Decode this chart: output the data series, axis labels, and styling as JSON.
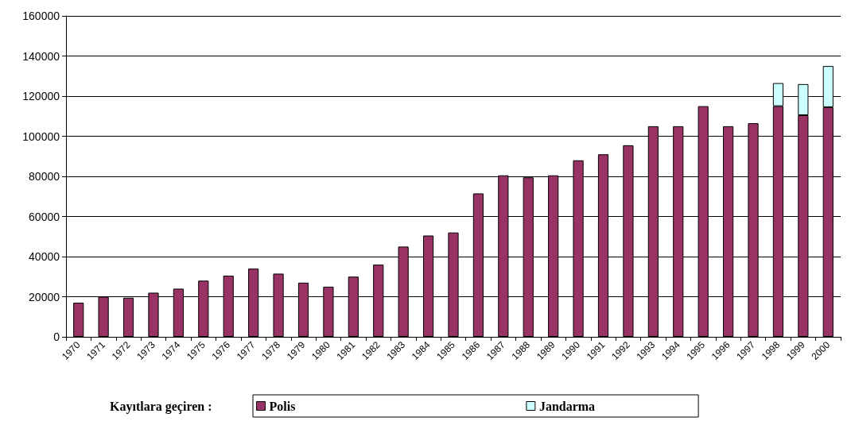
{
  "chart_data": {
    "type": "bar",
    "stacked": true,
    "legend_title": "Kayıtlara geçiren :",
    "categories": [
      "1970",
      "1971",
      "1972",
      "1973",
      "1974",
      "1975",
      "1976",
      "1977",
      "1978",
      "1979",
      "1980",
      "1981",
      "1982",
      "1983",
      "1984",
      "1985",
      "1986",
      "1987",
      "1988",
      "1989",
      "1990",
      "1991",
      "1992",
      "1993",
      "1994",
      "1995",
      "1996",
      "1997",
      "1998",
      "1999",
      "2000"
    ],
    "series": [
      {
        "name": "Polis",
        "color": "#993366",
        "values": [
          17000,
          20000,
          19500,
          22000,
          24000,
          28000,
          30500,
          34000,
          31500,
          27000,
          25000,
          30000,
          36000,
          45000,
          50500,
          52000,
          71500,
          80500,
          79500,
          80500,
          88000,
          91000,
          95500,
          105000,
          105000,
          115000,
          105000,
          106500,
          115000,
          110500,
          114500
        ]
      },
      {
        "name": "Jandarma",
        "color": "#ccffff",
        "values": [
          null,
          null,
          null,
          null,
          null,
          null,
          null,
          null,
          null,
          null,
          null,
          null,
          null,
          null,
          null,
          null,
          null,
          null,
          null,
          null,
          null,
          null,
          null,
          null,
          null,
          null,
          null,
          null,
          11500,
          15500,
          20500
        ]
      }
    ],
    "ylim": [
      0,
      160000
    ],
    "yticks": [
      0,
      20000,
      40000,
      60000,
      80000,
      100000,
      120000,
      140000,
      160000
    ],
    "grid": "y",
    "legend": "bottom"
  }
}
